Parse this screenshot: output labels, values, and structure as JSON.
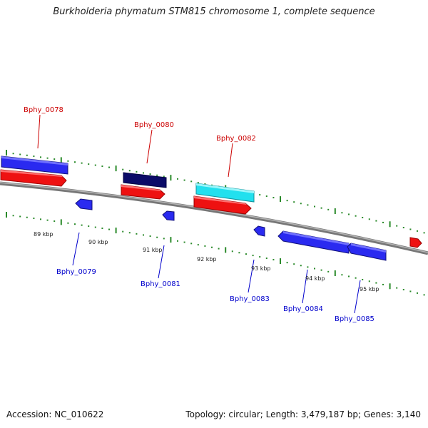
{
  "title": "Burkholderia phymatum STM815 chromosome 1, complete sequence",
  "accession": "Accession: NC_010622",
  "summary": "Topology: circular; Length: 3,479,187 bp; Genes: 3,140",
  "colors": {
    "forward_gene": "#2222ee",
    "forward_gene_dark": "#0a0a66",
    "forward_gene_cyan": "#22e0ee",
    "reverse_gene": "#ee1111",
    "backbone": "#8a8a8a",
    "tick": "#2a8a2a",
    "label_red": "#cc0000",
    "label_blue": "#0000cc"
  },
  "scale": {
    "unit": "kbp",
    "labels": [
      "89 kbp",
      "90 kbp",
      "91 kbp",
      "92 kbp",
      "93 kbp",
      "94 kbp",
      "95 kbp"
    ]
  },
  "gene_labels": {
    "top": [
      "Bphy_0078",
      "Bphy_0080",
      "Bphy_0082"
    ],
    "bottom": [
      "Bphy_0079",
      "Bphy_0081",
      "Bphy_0083",
      "Bphy_0084",
      "Bphy_0085"
    ]
  }
}
